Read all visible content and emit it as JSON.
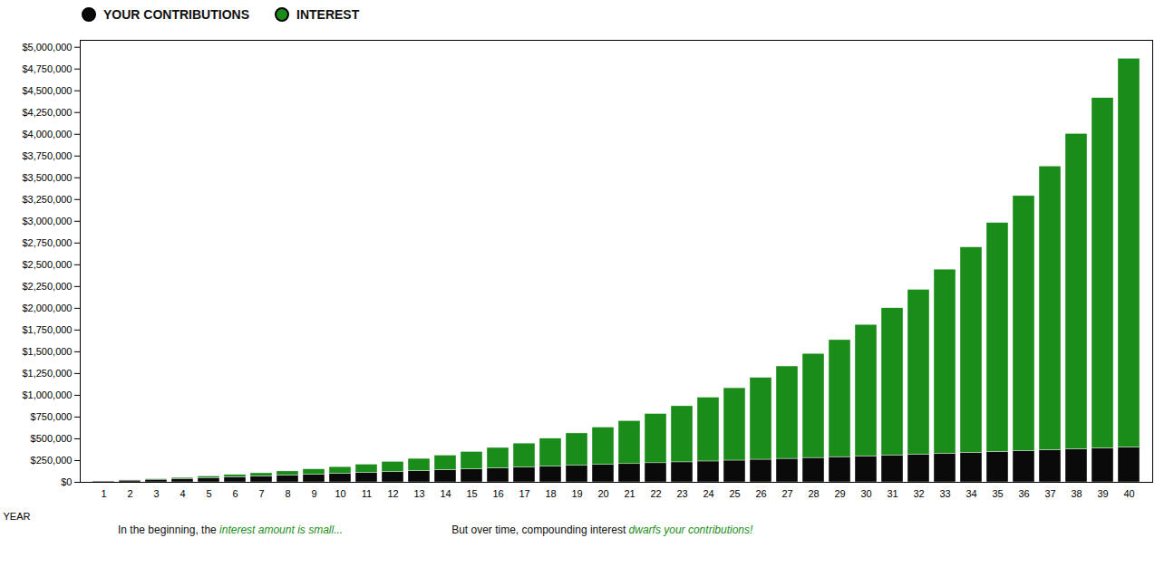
{
  "chart_data": {
    "type": "bar",
    "stacked": true,
    "x_label": "YEAR",
    "categories": [
      "1",
      "2",
      "3",
      "4",
      "5",
      "6",
      "7",
      "8",
      "9",
      "10",
      "11",
      "12",
      "13",
      "14",
      "15",
      "16",
      "17",
      "18",
      "19",
      "20",
      "21",
      "22",
      "23",
      "24",
      "25",
      "26",
      "27",
      "28",
      "29",
      "30",
      "31",
      "32",
      "33",
      "34",
      "35",
      "36",
      "37",
      "38",
      "39",
      "40"
    ],
    "series": [
      {
        "name": "YOUR CONTRIBUTIONS",
        "color": "#0a0a0a",
        "values": [
          10000,
          20000,
          30000,
          40000,
          50000,
          60000,
          70000,
          80000,
          90000,
          100000,
          110000,
          120000,
          130000,
          140000,
          150000,
          160000,
          170000,
          180000,
          190000,
          200000,
          210000,
          220000,
          230000,
          240000,
          250000,
          260000,
          270000,
          280000,
          290000,
          300000,
          310000,
          320000,
          330000,
          340000,
          350000,
          360000,
          370000,
          380000,
          390000,
          400000
        ]
      },
      {
        "name": "INTEREST",
        "color": "#1a8c1a",
        "values": [
          1000,
          3100,
          6410,
          11051,
          17156.1,
          24871.71,
          34358.881,
          45794.7691,
          59374.24601,
          75311.670611,
          93842.8376721,
          115227.12143931,
          139749.833583241,
          167724.8169415651,
          199497.2986357216,
          235447.0284992938,
          275991.7313492231,
          321590.9044841455,
          372749.99493256,
          430024.994425816,
          494027.4938683976,
          565430.2432552374,
          644973.2675807611,
          733470.5943388372,
          831817.653772721,
          940999.419149993,
          1062099.3610649924,
          1196309.2971714914,
          1344940.2268886408,
          1509434.2495775048,
          1691377.6745352554,
          1892515.4419887809,
          2114766.986187659,
          2360243.684806425,
          2631268.053287067,
          2930394.858615774,
          3260434.3444773513,
          3624477.778925087,
          4025925.556817595,
          4468518.112499355
        ]
      }
    ],
    "ylim": [
      0,
      5080000
    ],
    "yticks": [
      {
        "value": 0,
        "label": "$0"
      },
      {
        "value": 250000,
        "label": "$250,000"
      },
      {
        "value": 500000,
        "label": "$500,000"
      },
      {
        "value": 750000,
        "label": "$750,000"
      },
      {
        "value": 1000000,
        "label": "$1,000,000"
      },
      {
        "value": 1250000,
        "label": "$1,250,000"
      },
      {
        "value": 1500000,
        "label": "$1,500,000"
      },
      {
        "value": 1750000,
        "label": "$1,750,000"
      },
      {
        "value": 2000000,
        "label": "$2,000,000"
      },
      {
        "value": 2250000,
        "label": "$2,250,000"
      },
      {
        "value": 2500000,
        "label": "$2,500,000"
      },
      {
        "value": 2750000,
        "label": "$2,750,000"
      },
      {
        "value": 3000000,
        "label": "$3,000,000"
      },
      {
        "value": 3250000,
        "label": "$3,250,000"
      },
      {
        "value": 3500000,
        "label": "$3,500,000"
      },
      {
        "value": 3750000,
        "label": "$3,750,000"
      },
      {
        "value": 4000000,
        "label": "$4,000,000"
      },
      {
        "value": 4250000,
        "label": "$4,250,000"
      },
      {
        "value": 4500000,
        "label": "$4,500,000"
      },
      {
        "value": 4750000,
        "label": "$4,750,000"
      },
      {
        "value": 5000000,
        "label": "$5,000,000"
      }
    ],
    "grid": false,
    "legend": "upper left",
    "annotations": [
      [
        {
          "text": "In the beginning, the ",
          "color": "#111111"
        },
        {
          "text": "interest amount is small...",
          "color": "#1a8c1a"
        }
      ],
      [
        {
          "text": "But over time, compounding interest ",
          "color": "#111111"
        },
        {
          "text": "dwarfs your contributions!",
          "color": "#1a8c1a"
        }
      ]
    ]
  }
}
